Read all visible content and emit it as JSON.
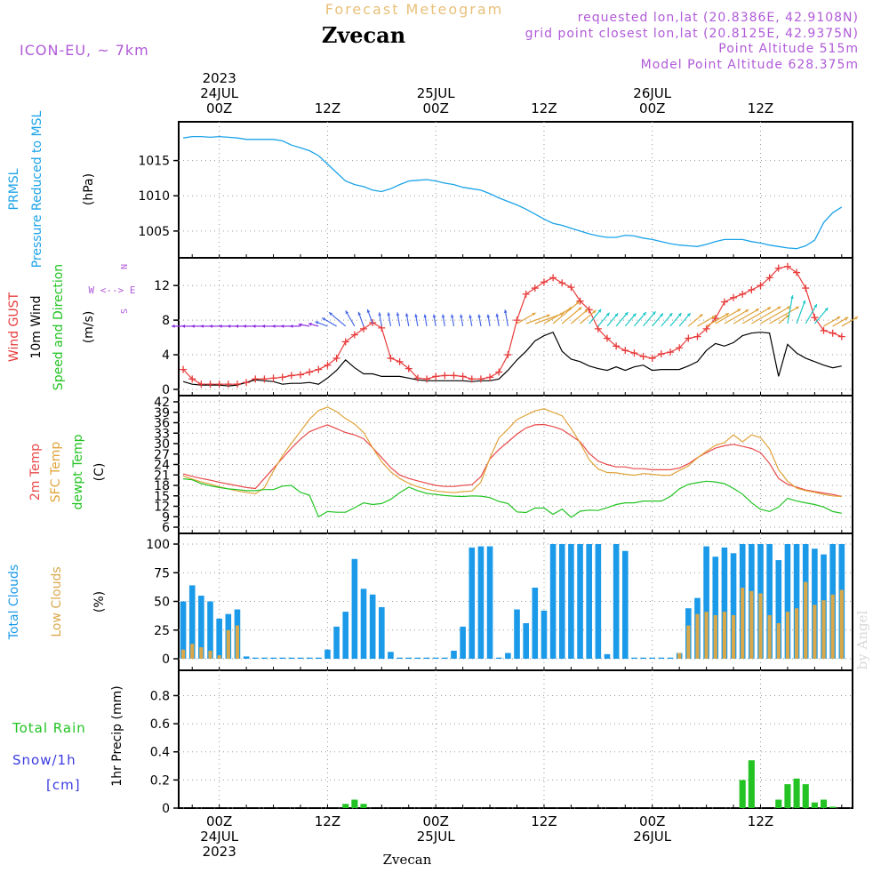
{
  "header": {
    "super_title": "Forecast Meteogram",
    "station": "Zvecan",
    "model": "ICON-EU, ~ 7km",
    "requested": "requested lon,lat (20.8386E, 42.9108N)",
    "grid_point": "grid point closest lon,lat (20.8125E, 42.9375N)",
    "point_alt": "Point Altitude 515m",
    "model_alt": "Model Point Altitude 628.375m",
    "watermark": "by Angel",
    "footer_station": "Zvecan"
  },
  "time_axis": {
    "top_labels": [
      {
        "h": 0,
        "lines": [
          "2023",
          "24JUL",
          "00Z"
        ]
      },
      {
        "h": 12,
        "lines": [
          "12Z"
        ]
      },
      {
        "h": 24,
        "lines": [
          "25JUL",
          "00Z"
        ]
      },
      {
        "h": 36,
        "lines": [
          "12Z"
        ]
      },
      {
        "h": 48,
        "lines": [
          "26JUL",
          "00Z"
        ]
      },
      {
        "h": 60,
        "lines": [
          "12Z"
        ]
      }
    ],
    "bottom_labels": [
      {
        "h": 0,
        "lines": [
          "00Z",
          "24JUL",
          "2023"
        ]
      },
      {
        "h": 12,
        "lines": [
          "12Z"
        ]
      },
      {
        "h": 24,
        "lines": [
          "00Z",
          "25JUL"
        ]
      },
      {
        "h": 36,
        "lines": [
          "12Z"
        ]
      },
      {
        "h": 48,
        "lines": [
          "00Z",
          "26JUL"
        ]
      },
      {
        "h": 60,
        "lines": [
          "12Z"
        ]
      }
    ]
  },
  "panel_labels": {
    "pressure": {
      "line1": "PRMSL",
      "line2": "Pressure Reduced to MSL",
      "unit": "(hPa)"
    },
    "wind": {
      "gust": "Wind GUST",
      "wind10": "10m Wind",
      "dir": "Speed and Direction",
      "unit": "(m/s)",
      "compass_we": "W <--> E",
      "compass_n": "N",
      "compass_s": "S"
    },
    "temp": {
      "t2m": "2m Temp",
      "sfc": "SFC Temp",
      "dew": "dewpt Temp",
      "unit": "(C)"
    },
    "clouds": {
      "total": "Total Clouds",
      "low": "Low Clouds",
      "unit": "(%)"
    },
    "precip": {
      "rain": "Total  Rain",
      "snow": "Snow/1h",
      "cm": "[cm]",
      "axis": "1hr Precip (mm)"
    }
  },
  "colors": {
    "pressure": "#1ba3e8",
    "gust": "#e83c3c",
    "wind": "#000000",
    "t2m": "#e84a4a",
    "sfc": "#e0a33a",
    "dew": "#22c322",
    "total_clouds": "#1a9ae8",
    "low_clouds": "#d9a84a",
    "rain": "#22c322",
    "purple": "#b05ad8",
    "header_orange": "#e8c07a"
  },
  "chart_data": [
    {
      "id": "pressure",
      "type": "line",
      "title": "PRMSL Pressure Reduced to MSL",
      "ylabel": "(hPa)",
      "ylim": [
        1001.2,
        1020.5
      ],
      "yticks": [
        1005,
        1010,
        1015
      ],
      "x": [
        -4,
        -3,
        -2,
        -1,
        0,
        1,
        2,
        3,
        4,
        5,
        6,
        7,
        8,
        9,
        10,
        11,
        12,
        13,
        14,
        15,
        16,
        17,
        18,
        19,
        20,
        21,
        22,
        23,
        24,
        25,
        26,
        27,
        28,
        29,
        30,
        31,
        32,
        33,
        34,
        35,
        36,
        37,
        38,
        39,
        40,
        41,
        42,
        43,
        44,
        45,
        46,
        47,
        48,
        49,
        50,
        51,
        52,
        53,
        54,
        55,
        56,
        57,
        58,
        59,
        60,
        61,
        62,
        63,
        64,
        65,
        66,
        67,
        68,
        69
      ],
      "values": [
        1018.2,
        1018.4,
        1018.4,
        1018.3,
        1018.4,
        1018.3,
        1018.2,
        1018.0,
        1018.0,
        1018.0,
        1018.0,
        1017.8,
        1017.2,
        1016.8,
        1016.4,
        1015.7,
        1014.5,
        1013.3,
        1012.1,
        1011.6,
        1011.3,
        1010.8,
        1010.6,
        1011.0,
        1011.6,
        1012.1,
        1012.2,
        1012.3,
        1012.1,
        1011.8,
        1011.6,
        1011.2,
        1011.0,
        1010.8,
        1010.3,
        1009.7,
        1009.2,
        1008.7,
        1008.1,
        1007.4,
        1006.7,
        1006.1,
        1005.8,
        1005.4,
        1005.0,
        1004.6,
        1004.3,
        1004.1,
        1004.1,
        1004.4,
        1004.3,
        1004.0,
        1003.8,
        1003.5,
        1003.2,
        1003.0,
        1002.9,
        1002.8,
        1003.1,
        1003.5,
        1003.8,
        1003.8,
        1003.8,
        1003.5,
        1003.3,
        1003.0,
        1002.8,
        1002.6,
        1002.5,
        1002.9,
        1003.7,
        1006.2,
        1007.6,
        1008.4
      ]
    },
    {
      "id": "wind",
      "type": "line",
      "title": "Wind GUST / 10m Wind Speed and Direction",
      "ylabel": "(m/s)",
      "ylim": [
        0,
        15.2
      ],
      "yticks": [
        0,
        4,
        8,
        12
      ],
      "x": [
        -4,
        -3,
        -2,
        -1,
        0,
        1,
        2,
        3,
        4,
        5,
        6,
        7,
        8,
        9,
        10,
        11,
        12,
        13,
        14,
        15,
        16,
        17,
        18,
        19,
        20,
        21,
        22,
        23,
        24,
        25,
        26,
        27,
        28,
        29,
        30,
        31,
        32,
        33,
        34,
        35,
        36,
        37,
        38,
        39,
        40,
        41,
        42,
        43,
        44,
        45,
        46,
        47,
        48,
        49,
        50,
        51,
        52,
        53,
        54,
        55,
        56,
        57,
        58,
        59,
        60,
        61,
        62,
        63,
        64,
        65,
        66,
        67,
        68,
        69
      ],
      "series": [
        {
          "name": "Wind GUST",
          "values": [
            2.3,
            1.2,
            0.6,
            0.6,
            0.6,
            0.6,
            0.6,
            0.8,
            1.2,
            1.2,
            1.3,
            1.4,
            1.6,
            1.7,
            2.0,
            2.3,
            2.8,
            3.6,
            5.5,
            6.3,
            7.0,
            7.7,
            7.1,
            3.6,
            3.2,
            2.4,
            1.3,
            1.2,
            1.5,
            1.6,
            1.6,
            1.5,
            1.2,
            1.2,
            1.4,
            2.0,
            4.0,
            8.0,
            11.0,
            11.7,
            12.4,
            12.9,
            12.3,
            11.8,
            10.2,
            9.2,
            7.0,
            5.9,
            5.0,
            4.5,
            4.2,
            3.8,
            3.6,
            4.1,
            4.3,
            4.8,
            5.9,
            6.1,
            7.0,
            8.2,
            10.1,
            10.6,
            11.0,
            11.5,
            12.0,
            12.9,
            14.0,
            14.2,
            13.5,
            11.7,
            8.3,
            6.8,
            6.5,
            6.1
          ]
        },
        {
          "name": "10m Wind",
          "values": [
            0.9,
            0.6,
            0.5,
            0.5,
            0.5,
            0.4,
            0.5,
            0.8,
            1.1,
            1.0,
            0.9,
            0.6,
            0.7,
            0.7,
            0.8,
            0.6,
            1.3,
            2.2,
            3.4,
            2.5,
            1.8,
            1.8,
            1.5,
            1.5,
            1.5,
            1.3,
            1.1,
            1.0,
            1.0,
            1.0,
            1.0,
            1.0,
            0.9,
            1.0,
            1.0,
            1.2,
            2.2,
            3.4,
            4.4,
            5.6,
            6.2,
            6.6,
            4.4,
            3.5,
            3.2,
            2.7,
            2.4,
            2.2,
            2.6,
            2.2,
            2.6,
            2.8,
            2.2,
            2.3,
            2.3,
            2.3,
            2.7,
            3.2,
            4.5,
            5.3,
            5.0,
            5.4,
            6.2,
            6.5,
            6.6,
            6.5,
            1.5,
            5.2,
            4.2,
            3.6,
            3.2,
            2.8,
            2.5,
            2.7
          ]
        }
      ],
      "arrow_dirs_deg": [
        0,
        0,
        0,
        0,
        0,
        0,
        0,
        0,
        0,
        0,
        0,
        0,
        0,
        0,
        10,
        15,
        20,
        30,
        40,
        60,
        70,
        70,
        80,
        80,
        80,
        80,
        80,
        80,
        80,
        80,
        80,
        80,
        80,
        80,
        80,
        80,
        80,
        150,
        160,
        160,
        150,
        140,
        140,
        140,
        140,
        130,
        130,
        130,
        130,
        130,
        130,
        130,
        130,
        130,
        130,
        130,
        140,
        150,
        150,
        150,
        150,
        150,
        150,
        150,
        150,
        150,
        140,
        100,
        110,
        120,
        130,
        150,
        150,
        150
      ]
    },
    {
      "id": "temp",
      "type": "line",
      "title": "2m Temp / SFC Temp / dewpt Temp",
      "ylabel": "(C)",
      "ylim": [
        6,
        42
      ],
      "yticks": [
        6,
        9,
        12,
        15,
        18,
        21,
        24,
        27,
        30,
        33,
        36,
        39,
        42
      ],
      "x": [
        -4,
        -3,
        -2,
        -1,
        0,
        1,
        2,
        3,
        4,
        5,
        6,
        7,
        8,
        9,
        10,
        11,
        12,
        13,
        14,
        15,
        16,
        17,
        18,
        19,
        20,
        21,
        22,
        23,
        24,
        25,
        26,
        27,
        28,
        29,
        30,
        31,
        32,
        33,
        34,
        35,
        36,
        37,
        38,
        39,
        40,
        41,
        42,
        43,
        44,
        45,
        46,
        47,
        48,
        49,
        50,
        51,
        52,
        53,
        54,
        55,
        56,
        57,
        58,
        59,
        60,
        61,
        62,
        63,
        64,
        65,
        66,
        67,
        68,
        69
      ],
      "series": [
        {
          "name": "2m Temp",
          "values": [
            21.3,
            20.6,
            20.0,
            19.5,
            18.9,
            18.4,
            17.9,
            17.4,
            17.1,
            20.0,
            22.9,
            25.8,
            28.7,
            31.3,
            33.4,
            34.5,
            35.4,
            34.3,
            33.2,
            32.5,
            31.4,
            28.8,
            26.0,
            23.1,
            21.0,
            20.0,
            19.3,
            18.6,
            18.0,
            17.7,
            17.7,
            18.0,
            18.2,
            20.5,
            25.6,
            28.3,
            30.5,
            32.7,
            34.5,
            35.4,
            35.5,
            34.9,
            34.0,
            32.3,
            30.5,
            27.2,
            25.0,
            24.0,
            23.3,
            23.3,
            22.8,
            22.8,
            22.5,
            22.5,
            22.5,
            23.0,
            24.2,
            26.0,
            27.4,
            28.7,
            29.4,
            29.8,
            29.2,
            28.6,
            27.4,
            24.3,
            20.0,
            18.3,
            17.5,
            16.7,
            16.2,
            15.8,
            15.4,
            14.8
          ]
        },
        {
          "name": "SFC Temp",
          "values": [
            20.7,
            19.8,
            19.0,
            18.4,
            17.6,
            17.0,
            16.4,
            16.0,
            15.6,
            17.3,
            22.1,
            26.5,
            30.1,
            33.5,
            37.0,
            39.5,
            40.5,
            39.2,
            37.2,
            35.6,
            33.2,
            28.8,
            24.8,
            21.9,
            20.0,
            18.6,
            17.6,
            16.9,
            16.4,
            16.1,
            15.9,
            16.2,
            16.4,
            18.9,
            25.9,
            31.6,
            34.2,
            36.9,
            38.2,
            39.4,
            40.0,
            39.0,
            38.0,
            34.4,
            30.2,
            25.4,
            22.7,
            21.7,
            21.6,
            21.2,
            20.9,
            21.4,
            21.2,
            20.9,
            20.9,
            22.3,
            23.6,
            25.9,
            27.8,
            29.5,
            30.3,
            32.5,
            30.5,
            32.5,
            31.7,
            28.5,
            22.5,
            19.2,
            17.2,
            16.5,
            16.0,
            15.4,
            15.0,
            14.8
          ]
        },
        {
          "name": "dewpt Temp",
          "values": [
            19.9,
            19.6,
            18.5,
            17.9,
            17.4,
            17.0,
            16.8,
            16.5,
            16.5,
            16.8,
            16.8,
            17.8,
            18.0,
            16.0,
            15.2,
            9.0,
            10.5,
            10.3,
            10.3,
            11.6,
            13.0,
            12.5,
            12.8,
            14.0,
            15.9,
            17.5,
            16.5,
            15.7,
            15.4,
            15.1,
            14.9,
            14.8,
            15.0,
            14.9,
            14.5,
            13.4,
            12.8,
            10.4,
            10.2,
            11.5,
            11.5,
            9.7,
            11.2,
            8.8,
            10.6,
            10.9,
            10.8,
            11.6,
            12.5,
            13.0,
            13.0,
            13.5,
            13.5,
            13.5,
            14.8,
            17.0,
            18.3,
            18.8,
            19.2,
            19.0,
            18.5,
            17.1,
            15.5,
            13.0,
            11.1,
            10.5,
            11.8,
            14.3,
            13.5,
            13.0,
            12.5,
            11.8,
            10.5,
            10.0
          ]
        }
      ]
    },
    {
      "id": "clouds",
      "type": "bar",
      "title": "Total Clouds / Low Clouds",
      "ylabel": "(%)",
      "ylim": [
        0,
        100
      ],
      "yticks": [
        0,
        25,
        50,
        75,
        100
      ],
      "x": [
        -4,
        -3,
        -2,
        -1,
        0,
        1,
        2,
        3,
        4,
        5,
        6,
        7,
        8,
        9,
        10,
        11,
        12,
        13,
        14,
        15,
        16,
        17,
        18,
        19,
        20,
        21,
        22,
        23,
        24,
        25,
        26,
        27,
        28,
        29,
        30,
        31,
        32,
        33,
        34,
        35,
        36,
        37,
        38,
        39,
        40,
        41,
        42,
        43,
        44,
        45,
        46,
        47,
        48,
        49,
        50,
        51,
        52,
        53,
        54,
        55,
        56,
        57,
        58,
        59,
        60,
        61,
        62,
        63,
        64,
        65,
        66,
        67,
        68,
        69
      ],
      "series": [
        {
          "name": "Total Clouds",
          "values": [
            50,
            64,
            55,
            50,
            35,
            39,
            43,
            2,
            1,
            1,
            1,
            1,
            1,
            1,
            1,
            1,
            8,
            28,
            41,
            87,
            61,
            56,
            45,
            6,
            1,
            1,
            1,
            1,
            1,
            1,
            7,
            28,
            97,
            98,
            98,
            1,
            5,
            43,
            31,
            62,
            42,
            100,
            100,
            100,
            100,
            100,
            100,
            4,
            100,
            94,
            1,
            1,
            1,
            1,
            1,
            5,
            44,
            53,
            98,
            89,
            97,
            92,
            100,
            100,
            100,
            100,
            86,
            100,
            100,
            100,
            96,
            91,
            100,
            100
          ]
        },
        {
          "name": "Low Clouds",
          "values": [
            8,
            13,
            10,
            7,
            3,
            25,
            29,
            0,
            0,
            0,
            0,
            0,
            0,
            0,
            0,
            0,
            0,
            0,
            0,
            0,
            0,
            0,
            0,
            0,
            0,
            0,
            0,
            0,
            0,
            0,
            0,
            0,
            0,
            0,
            0,
            0,
            0,
            0,
            0,
            0,
            0,
            0,
            0,
            0,
            0,
            0,
            0,
            0,
            0,
            0,
            0,
            0,
            0,
            0,
            0,
            5,
            29,
            39,
            41,
            38,
            41,
            38,
            62,
            59,
            57,
            38,
            31,
            41,
            44,
            67,
            47,
            51,
            56,
            60
          ]
        }
      ]
    },
    {
      "id": "precip",
      "type": "bar",
      "title": "1hr Precip (mm)",
      "ylabel": "1hr Precip (mm)",
      "ylim": [
        0,
        0.98
      ],
      "yticks": [
        0,
        0.2,
        0.4,
        0.6,
        0.8
      ],
      "x": [
        14,
        15,
        16,
        58,
        59,
        62,
        63,
        64,
        65,
        66,
        67,
        68
      ],
      "series": [
        {
          "name": "Total Rain",
          "values": [
            0.03,
            0.06,
            0.03,
            0.2,
            0.34,
            0.06,
            0.17,
            0.21,
            0.17,
            0.04,
            0.06,
            0.01
          ]
        }
      ]
    }
  ]
}
